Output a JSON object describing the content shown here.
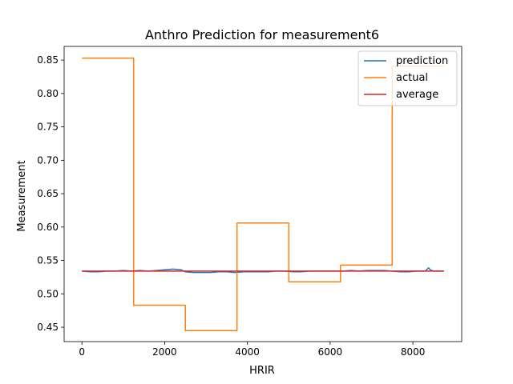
{
  "chart_data": {
    "type": "line",
    "title": "Anthro Prediction for measurement6",
    "xlabel": "HRIR",
    "ylabel": "Measurement",
    "xlim": [
      -430,
      9180
    ],
    "ylim": [
      0.4285,
      0.8705
    ],
    "xticks": [
      0,
      2000,
      4000,
      6000,
      8000
    ],
    "xtick_labels": [
      "0",
      "2000",
      "4000",
      "6000",
      "8000"
    ],
    "yticks": [
      0.45,
      0.5,
      0.55,
      0.6,
      0.65,
      0.7,
      0.75,
      0.8,
      0.85
    ],
    "ytick_labels": [
      "0.45",
      "0.50",
      "0.55",
      "0.60",
      "0.65",
      "0.70",
      "0.75",
      "0.80",
      "0.85"
    ],
    "grid": false,
    "legend_position": "upper right",
    "series": [
      {
        "name": "prediction",
        "color": "#1f77b4",
        "x": [
          0,
          200,
          400,
          600,
          800,
          1000,
          1200,
          1400,
          1600,
          1800,
          2000,
          2200,
          2400,
          2500,
          2700,
          2900,
          3100,
          3300,
          3500,
          3700,
          3900,
          4100,
          4300,
          4500,
          4700,
          4900,
          5100,
          5300,
          5500,
          5700,
          5900,
          6100,
          6300,
          6500,
          6700,
          6900,
          7100,
          7300,
          7500,
          7700,
          7900,
          8100,
          8300,
          8380,
          8420,
          8500,
          8600,
          8750
        ],
        "y": [
          0.534,
          0.533,
          0.533,
          0.534,
          0.534,
          0.535,
          0.534,
          0.535,
          0.534,
          0.535,
          0.536,
          0.537,
          0.536,
          0.533,
          0.532,
          0.532,
          0.532,
          0.533,
          0.533,
          0.532,
          0.533,
          0.533,
          0.533,
          0.533,
          0.534,
          0.534,
          0.533,
          0.533,
          0.534,
          0.534,
          0.534,
          0.534,
          0.534,
          0.535,
          0.534,
          0.535,
          0.535,
          0.535,
          0.534,
          0.533,
          0.533,
          0.534,
          0.534,
          0.539,
          0.536,
          0.534,
          0.534,
          0.534
        ]
      },
      {
        "name": "actual",
        "color": "#ff7f0e",
        "x": [
          0,
          1250,
          1250,
          2500,
          2500,
          3750,
          3750,
          5000,
          5000,
          6250,
          6250,
          7500,
          7500,
          8750
        ],
        "y": [
          0.853,
          0.853,
          0.483,
          0.483,
          0.445,
          0.445,
          0.606,
          0.606,
          0.518,
          0.518,
          0.543,
          0.543,
          0.841,
          0.841
        ]
      },
      {
        "name": "average",
        "color": "#d62728",
        "x": [
          0,
          8750
        ],
        "y": [
          0.534,
          0.534
        ]
      }
    ]
  }
}
